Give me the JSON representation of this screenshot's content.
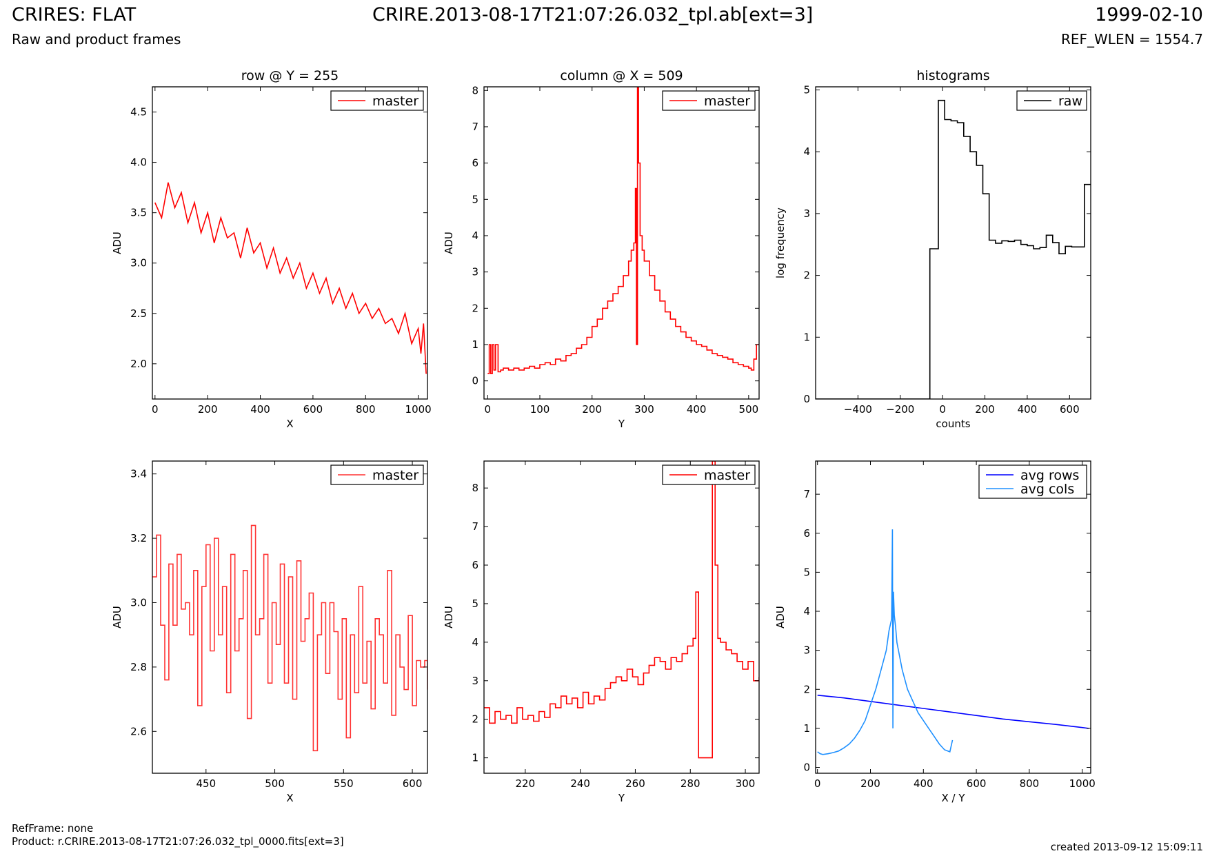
{
  "header": {
    "title_left": "CRIRES: FLAT",
    "title_mid": "CRIRE.2013-08-17T21:07:26.032_tpl.ab[ext=3]",
    "title_right": "1999-02-10",
    "subtitle_left": "Raw and product frames",
    "subtitle_right": "REF_WLEN = 1554.7"
  },
  "footer": {
    "refframe": "RefFrame: none",
    "product": "Product: r.CRIRE.2013-08-17T21:07:26.032_tpl_0000.fits[ext=3]",
    "created": "created 2013-09-12 15:09:11"
  },
  "chart_data": [
    {
      "id": "p1",
      "type": "line",
      "title": "row @ Y = 255",
      "xlabel": "X",
      "ylabel": "ADU",
      "xlim": [
        -10,
        1035
      ],
      "ylim": [
        1.65,
        4.75
      ],
      "xticks": [
        0,
        200,
        400,
        600,
        800,
        1000
      ],
      "yticks": [
        2.0,
        2.5,
        3.0,
        3.5,
        4.0,
        4.5
      ],
      "grid": false,
      "legend": "top-right",
      "color": "#ff0000",
      "step": false,
      "series": [
        {
          "name": "master",
          "x": [
            0,
            25,
            50,
            75,
            100,
            125,
            150,
            175,
            200,
            225,
            250,
            275,
            300,
            325,
            350,
            375,
            400,
            425,
            450,
            475,
            500,
            525,
            550,
            575,
            600,
            625,
            650,
            675,
            700,
            725,
            750,
            775,
            800,
            825,
            850,
            875,
            900,
            925,
            950,
            975,
            1000,
            1010,
            1020,
            1030
          ],
          "y": [
            3.6,
            3.45,
            3.8,
            3.55,
            3.7,
            3.4,
            3.6,
            3.3,
            3.5,
            3.2,
            3.45,
            3.25,
            3.3,
            3.05,
            3.35,
            3.1,
            3.2,
            2.95,
            3.15,
            2.9,
            3.05,
            2.85,
            3.0,
            2.75,
            2.9,
            2.7,
            2.85,
            2.6,
            2.75,
            2.55,
            2.7,
            2.5,
            2.6,
            2.45,
            2.55,
            2.4,
            2.45,
            2.3,
            2.5,
            2.2,
            2.35,
            2.1,
            2.4,
            1.9
          ]
        }
      ]
    },
    {
      "id": "p2",
      "type": "line",
      "title": "column @ X = 509",
      "xlabel": "Y",
      "ylabel": "ADU",
      "xlim": [
        -7,
        520
      ],
      "ylim": [
        -0.5,
        8.1
      ],
      "xticks": [
        0,
        100,
        200,
        300,
        400,
        500
      ],
      "yticks": [
        0,
        1,
        2,
        3,
        4,
        5,
        6,
        7,
        8
      ],
      "grid": false,
      "legend": "top-right",
      "color": "#ff0000",
      "step": true,
      "series": [
        {
          "name": "master",
          "x": [
            0,
            3,
            6,
            9,
            12,
            15,
            20,
            25,
            30,
            40,
            50,
            60,
            70,
            80,
            90,
            100,
            110,
            120,
            130,
            140,
            150,
            160,
            170,
            180,
            190,
            200,
            210,
            220,
            230,
            240,
            250,
            260,
            270,
            275,
            280,
            283,
            285,
            287,
            289,
            292,
            296,
            300,
            310,
            320,
            330,
            340,
            350,
            360,
            370,
            380,
            390,
            400,
            410,
            420,
            430,
            440,
            450,
            460,
            470,
            480,
            490,
            500,
            505,
            510,
            515,
            520
          ],
          "y": [
            0.2,
            1.0,
            0.2,
            1.0,
            0.3,
            1.0,
            0.25,
            0.3,
            0.35,
            0.3,
            0.35,
            0.3,
            0.35,
            0.4,
            0.35,
            0.45,
            0.5,
            0.45,
            0.6,
            0.55,
            0.7,
            0.75,
            0.9,
            1.0,
            1.2,
            1.5,
            1.7,
            2.0,
            2.2,
            2.4,
            2.6,
            2.9,
            3.3,
            3.6,
            3.8,
            5.3,
            1.0,
            8.1,
            6.0,
            4.0,
            3.6,
            3.3,
            2.9,
            2.5,
            2.2,
            1.9,
            1.7,
            1.5,
            1.35,
            1.2,
            1.1,
            1.0,
            0.95,
            0.85,
            0.75,
            0.7,
            0.65,
            0.6,
            0.5,
            0.45,
            0.4,
            0.35,
            0.3,
            0.6,
            1.0,
            1.0
          ]
        }
      ]
    },
    {
      "id": "p3",
      "type": "line",
      "title": "histograms",
      "xlabel": "counts",
      "ylabel": "log frequency",
      "xlim": [
        -600,
        700
      ],
      "ylim": [
        0,
        5.05
      ],
      "xticks": [
        -400,
        -200,
        0,
        200,
        400,
        600
      ],
      "yticks": [
        0,
        1,
        2,
        3,
        4,
        5
      ],
      "grid": false,
      "legend": "top-right",
      "color": "#000000",
      "step": true,
      "series": [
        {
          "name": "raw",
          "x": [
            -600,
            -60,
            -60,
            -40,
            -20,
            10,
            40,
            70,
            100,
            130,
            160,
            190,
            220,
            250,
            280,
            310,
            340,
            370,
            400,
            430,
            460,
            490,
            520,
            550,
            580,
            610,
            640,
            670,
            700
          ],
          "y": [
            0,
            0,
            2.43,
            2.43,
            4.83,
            4.52,
            4.5,
            4.47,
            4.25,
            4.0,
            3.78,
            3.32,
            2.57,
            2.52,
            2.56,
            2.55,
            2.57,
            2.5,
            2.48,
            2.43,
            2.45,
            2.65,
            2.53,
            2.35,
            2.47,
            2.46,
            2.46,
            3.47,
            3.47
          ]
        }
      ]
    },
    {
      "id": "p4",
      "type": "line",
      "title": "",
      "xlabel": "X",
      "ylabel": "ADU",
      "xlim": [
        411,
        611
      ],
      "ylim": [
        2.47,
        3.44
      ],
      "xticks": [
        450,
        500,
        550,
        600
      ],
      "yticks": [
        2.6,
        2.8,
        3.0,
        3.2,
        3.4
      ],
      "grid": false,
      "legend": "top-right",
      "color": "#ff3333",
      "step": true,
      "series": [
        {
          "name": "master",
          "x": [
            411,
            414,
            417,
            420,
            423,
            426,
            429,
            432,
            435,
            438,
            441,
            444,
            447,
            450,
            453,
            456,
            459,
            462,
            465,
            468,
            471,
            474,
            477,
            480,
            483,
            486,
            489,
            492,
            495,
            498,
            501,
            504,
            507,
            510,
            513,
            516,
            519,
            522,
            525,
            528,
            531,
            534,
            537,
            540,
            543,
            546,
            549,
            552,
            555,
            558,
            561,
            564,
            567,
            570,
            573,
            576,
            579,
            582,
            585,
            588,
            591,
            594,
            597,
            600,
            603,
            606,
            609,
            611
          ],
          "y": [
            3.08,
            3.21,
            2.93,
            2.76,
            3.12,
            2.93,
            3.15,
            2.98,
            3.0,
            2.9,
            3.1,
            2.68,
            3.05,
            3.18,
            2.85,
            3.2,
            2.9,
            3.05,
            2.72,
            3.15,
            2.85,
            2.95,
            3.1,
            2.64,
            3.24,
            2.9,
            2.95,
            3.15,
            2.75,
            3.0,
            2.87,
            3.12,
            2.75,
            3.08,
            2.7,
            3.13,
            2.88,
            2.95,
            3.03,
            2.54,
            2.9,
            3.0,
            2.78,
            3.0,
            2.91,
            2.7,
            2.95,
            2.58,
            2.9,
            2.72,
            3.05,
            2.75,
            2.88,
            2.67,
            2.95,
            2.9,
            2.75,
            3.1,
            2.65,
            2.9,
            2.8,
            2.73,
            2.96,
            2.68,
            2.82,
            2.8,
            2.82,
            2.73
          ]
        }
      ]
    },
    {
      "id": "p5",
      "type": "line",
      "title": "",
      "xlabel": "Y",
      "ylabel": "ADU",
      "xlim": [
        205,
        305
      ],
      "ylim": [
        0.6,
        8.7
      ],
      "xticks": [
        220,
        240,
        260,
        280,
        300
      ],
      "yticks": [
        1,
        2,
        3,
        4,
        5,
        6,
        7,
        8
      ],
      "grid": false,
      "legend": "top-right",
      "color": "#ff0000",
      "step": true,
      "series": [
        {
          "name": "master",
          "x": [
            205,
            207,
            209,
            211,
            213,
            215,
            217,
            219,
            221,
            223,
            225,
            227,
            229,
            231,
            233,
            235,
            237,
            239,
            241,
            243,
            245,
            247,
            249,
            251,
            253,
            255,
            257,
            259,
            261,
            263,
            265,
            267,
            269,
            271,
            273,
            275,
            277,
            279,
            281,
            282,
            283,
            285,
            287,
            288,
            289,
            290,
            291,
            293,
            295,
            297,
            299,
            301,
            303,
            305
          ],
          "y": [
            2.3,
            1.9,
            2.2,
            2.0,
            2.1,
            1.9,
            2.3,
            2.0,
            2.1,
            1.95,
            2.2,
            2.05,
            2.4,
            2.3,
            2.6,
            2.4,
            2.55,
            2.3,
            2.7,
            2.4,
            2.6,
            2.5,
            2.8,
            2.95,
            3.1,
            3.0,
            3.3,
            3.1,
            2.9,
            3.2,
            3.4,
            3.6,
            3.5,
            3.3,
            3.6,
            3.5,
            3.7,
            3.9,
            4.1,
            5.3,
            1.0,
            1.0,
            1.0,
            8.7,
            6.0,
            4.1,
            4.0,
            3.8,
            3.7,
            3.5,
            3.3,
            3.5,
            3.0,
            3.1
          ]
        }
      ]
    },
    {
      "id": "p6",
      "type": "line",
      "title": "",
      "xlabel": "X / Y",
      "ylabel": "ADU",
      "xlim": [
        -7,
        1032
      ],
      "ylim": [
        -0.15,
        7.85
      ],
      "xticks": [
        0,
        200,
        400,
        600,
        800,
        1000
      ],
      "yticks": [
        0,
        1,
        2,
        3,
        4,
        5,
        6,
        7
      ],
      "grid": false,
      "legend": "top-right",
      "step": false,
      "series": [
        {
          "name": "avg rows",
          "color": "#0000ff",
          "x": [
            0,
            100,
            200,
            300,
            400,
            500,
            600,
            700,
            800,
            900,
            1000,
            1024
          ],
          "y": [
            1.85,
            1.78,
            1.69,
            1.6,
            1.51,
            1.42,
            1.33,
            1.24,
            1.17,
            1.1,
            1.02,
            1.0
          ]
        },
        {
          "name": "avg cols",
          "color": "#1e90ff",
          "x": [
            0,
            10,
            20,
            40,
            60,
            80,
            100,
            120,
            140,
            160,
            180,
            200,
            220,
            240,
            260,
            270,
            280,
            283,
            285,
            287,
            290,
            295,
            300,
            320,
            340,
            360,
            380,
            400,
            420,
            440,
            460,
            480,
            500,
            505,
            510
          ],
          "y": [
            0.4,
            0.35,
            0.33,
            0.35,
            0.38,
            0.42,
            0.5,
            0.6,
            0.75,
            0.95,
            1.2,
            1.6,
            2.0,
            2.5,
            3.0,
            3.5,
            3.8,
            6.1,
            1.0,
            4.5,
            3.9,
            3.6,
            3.2,
            2.5,
            2.0,
            1.7,
            1.4,
            1.2,
            1.0,
            0.8,
            0.6,
            0.45,
            0.4,
            0.55,
            0.7
          ]
        }
      ]
    }
  ]
}
